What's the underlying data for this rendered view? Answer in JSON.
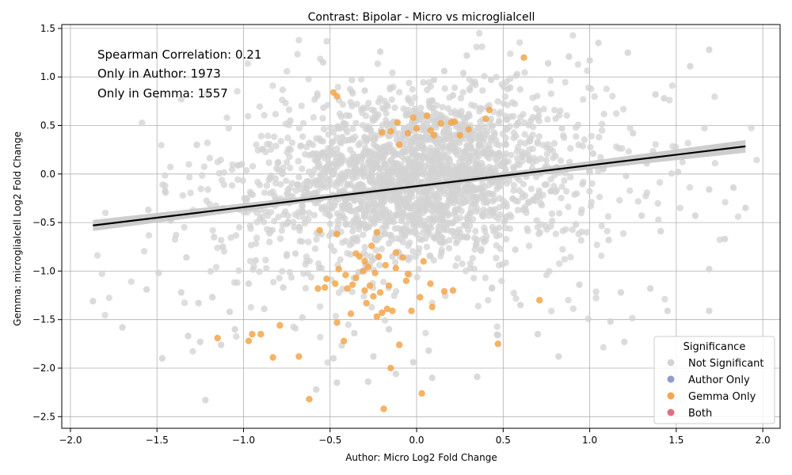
{
  "chart_data": {
    "type": "scatter",
    "title": "Contrast: Bipolar - Micro vs microglialcell",
    "xlabel": "Author: Micro Log2 Fold Change",
    "ylabel": "Gemma: microglialcell Log2 Fold Change",
    "xlim": [
      -2.05,
      2.1
    ],
    "ylim": [
      -2.62,
      1.54
    ],
    "x_ticks": [
      -2.0,
      -1.5,
      -1.0,
      -0.5,
      0.0,
      0.5,
      1.0,
      1.5,
      2.0
    ],
    "y_ticks": [
      -2.5,
      -2.0,
      -1.5,
      -1.0,
      -0.5,
      0.0,
      0.5,
      1.0,
      1.5
    ],
    "grid": true,
    "annotations": [
      "Spearman Correlation: 0.21",
      "Only in Author: 1973",
      "Only in Gemma: 1557"
    ],
    "legend": {
      "title": "Significance",
      "placement": "lower-right",
      "entries": [
        {
          "label": "Not Significant",
          "color": "#d3d3d3"
        },
        {
          "label": "Author Only",
          "color": "#8da0cb"
        },
        {
          "label": "Gemma Only",
          "color": "#f5a54a"
        },
        {
          "label": "Both",
          "color": "#e26d80"
        }
      ]
    },
    "regression": {
      "x": [
        -1.87,
        1.9
      ],
      "y": [
        -0.53,
        0.285
      ],
      "color": "#000000",
      "band_color": "#c8c8c8"
    },
    "series": [
      {
        "name": "Not Significant",
        "color": "#d3d3d3",
        "points": [
          [
            -1.87,
            -1.31
          ],
          [
            -1.7,
            -1.58
          ],
          [
            -1.56,
            -1.19
          ],
          [
            -1.47,
            -1.9
          ],
          [
            -1.49,
            -1.02
          ],
          [
            -1.45,
            -0.19
          ],
          [
            -1.36,
            -1.22
          ],
          [
            -1.33,
            -0.86
          ],
          [
            -1.32,
            -1.67
          ],
          [
            -1.26,
            -1.33
          ],
          [
            -1.25,
            -1.73
          ],
          [
            -1.22,
            -2.33
          ],
          [
            -1.27,
            0.3
          ],
          [
            -1.18,
            -1.27
          ],
          [
            -1.17,
            -0.65
          ],
          [
            -1.13,
            -1.76
          ],
          [
            -1.05,
            -1.6
          ],
          [
            -1.01,
            0.1
          ],
          [
            -0.97,
            -1.13
          ],
          [
            -0.93,
            -0.89
          ],
          [
            -0.88,
            -1.39
          ],
          [
            -0.82,
            -0.23
          ],
          [
            -0.77,
            -1.17
          ],
          [
            -0.73,
            0.55
          ],
          [
            -0.66,
            -1.48
          ],
          [
            -0.58,
            -2.22
          ],
          [
            -0.57,
            0.08
          ],
          [
            -0.54,
            1.15
          ],
          [
            -0.48,
            -1.9
          ],
          [
            -0.46,
            -2.15
          ],
          [
            -0.39,
            0.6
          ],
          [
            -0.3,
            0.86
          ],
          [
            -0.28,
            -2.14
          ],
          [
            -0.25,
            -1.88
          ],
          [
            -0.21,
            1.26
          ],
          [
            -0.16,
            -1.6
          ],
          [
            -0.12,
            -2.06
          ],
          [
            -0.02,
            -1.94
          ],
          [
            0.07,
            -1.82
          ],
          [
            0.09,
            -2.1
          ],
          [
            0.1,
            0.97
          ],
          [
            0.16,
            1.06
          ],
          [
            0.21,
            0.81
          ],
          [
            0.27,
            1.04
          ],
          [
            0.29,
            1.22
          ],
          [
            0.35,
            -2.09
          ],
          [
            0.43,
            0.97
          ],
          [
            0.47,
            -1.66
          ],
          [
            0.54,
            0.89
          ],
          [
            0.6,
            -1.35
          ],
          [
            0.66,
            0.55
          ],
          [
            0.7,
            -1.65
          ],
          [
            0.76,
            1.14
          ],
          [
            0.82,
            -1.88
          ],
          [
            0.88,
            1.21
          ],
          [
            0.94,
            -1.14
          ],
          [
            1.0,
            1.17
          ],
          [
            1.05,
            1.35
          ],
          [
            1.12,
            -1.52
          ],
          [
            1.18,
            -1.22
          ],
          [
            1.2,
            -1.73
          ],
          [
            1.22,
            1.25
          ],
          [
            1.25,
            0.42
          ],
          [
            1.3,
            -0.43
          ],
          [
            1.35,
            -1.18
          ],
          [
            1.38,
            0.82
          ],
          [
            1.43,
            0.78
          ],
          [
            1.45,
            -1.41
          ],
          [
            1.51,
            0.02
          ],
          [
            1.58,
            1.11
          ],
          [
            1.61,
            -0.43
          ],
          [
            1.69,
            1.28
          ],
          [
            1.69,
            -0.98
          ],
          [
            1.69,
            -1.41
          ],
          [
            1.69,
            -0.16
          ],
          [
            1.78,
            -0.67
          ],
          [
            1.83,
            -0.14
          ],
          [
            1.9,
            -0.35
          ],
          [
            -1.55,
            -0.37
          ],
          [
            -1.42,
            -0.48
          ],
          [
            -1.12,
            -0.75
          ],
          [
            -0.98,
            -0.25
          ],
          [
            -0.85,
            -0.61
          ],
          [
            -0.8,
            0.12
          ],
          [
            -0.7,
            -0.82
          ],
          [
            -0.62,
            0.32
          ],
          [
            -0.55,
            -0.97
          ],
          [
            -0.43,
            0.38
          ],
          [
            -0.35,
            -0.46
          ],
          [
            -0.22,
            0.2
          ],
          [
            -0.14,
            -0.85
          ],
          [
            -0.05,
            0.43
          ],
          [
            0.03,
            -0.28
          ],
          [
            0.12,
            0.15
          ],
          [
            0.22,
            -0.64
          ],
          [
            0.31,
            0.29
          ],
          [
            0.38,
            -0.41
          ],
          [
            0.48,
            0.18
          ],
          [
            0.57,
            -0.78
          ],
          [
            0.65,
            0.34
          ],
          [
            0.74,
            -0.11
          ],
          [
            0.84,
            0.47
          ],
          [
            0.92,
            -0.52
          ],
          [
            1.02,
            0.21
          ],
          [
            1.11,
            -0.68
          ],
          [
            1.21,
            -0.02
          ],
          [
            1.33,
            0.11
          ],
          [
            1.41,
            -0.59
          ],
          [
            -1.08,
            -1.42
          ],
          [
            -0.36,
            -1.64
          ]
        ],
        "clusters": [
          {
            "cx": 0.0,
            "cy": -0.02,
            "sx": 0.36,
            "sy": 0.38,
            "n": 1400
          },
          {
            "cx": 0.0,
            "cy": -0.05,
            "sx": 0.6,
            "sy": 0.55,
            "n": 700
          },
          {
            "cx": 0.05,
            "cy": -0.1,
            "sx": 0.9,
            "sy": 0.7,
            "n": 250
          }
        ]
      },
      {
        "name": "Gemma Only",
        "color": "#f5a54a",
        "points": [
          [
            -1.15,
            -1.69
          ],
          [
            -0.97,
            -1.72
          ],
          [
            -0.95,
            -1.65
          ],
          [
            -0.9,
            -1.65
          ],
          [
            -0.83,
            -1.89
          ],
          [
            -0.79,
            -1.56
          ],
          [
            -0.68,
            -1.88
          ],
          [
            -0.62,
            -2.32
          ],
          [
            -0.57,
            -1.18
          ],
          [
            -0.56,
            -0.58
          ],
          [
            -0.52,
            -1.08
          ],
          [
            -0.47,
            -1.13
          ],
          [
            -0.46,
            -1.53
          ],
          [
            -0.46,
            -0.62
          ],
          [
            -0.42,
            -1.72
          ],
          [
            -0.41,
            -1.04
          ],
          [
            -0.4,
            -1.18
          ],
          [
            -0.38,
            -1.44
          ],
          [
            -0.37,
            -1.14
          ],
          [
            -0.35,
            -1.07
          ],
          [
            -0.33,
            -0.85
          ],
          [
            -0.31,
            -1.0
          ],
          [
            -0.3,
            -1.2
          ],
          [
            -0.29,
            -1.33
          ],
          [
            -0.28,
            -0.96
          ],
          [
            -0.27,
            -1.15
          ],
          [
            -0.26,
            -0.74
          ],
          [
            -0.25,
            -1.26
          ],
          [
            -0.24,
            -1.02
          ],
          [
            -0.23,
            -1.47
          ],
          [
            -0.22,
            -0.85
          ],
          [
            -0.21,
            -1.22
          ],
          [
            -0.2,
            -1.43
          ],
          [
            -0.19,
            -2.42
          ],
          [
            -0.18,
            -0.94
          ],
          [
            -0.17,
            -1.39
          ],
          [
            -0.16,
            -1.15
          ],
          [
            -0.15,
            -2.0
          ],
          [
            -0.14,
            -1.41
          ],
          [
            -0.12,
            -0.81
          ],
          [
            -0.1,
            -1.76
          ],
          [
            -0.08,
            -0.86
          ],
          [
            -0.05,
            -1.03
          ],
          [
            -0.03,
            -1.41
          ],
          [
            0.02,
            -1.27
          ],
          [
            0.03,
            -2.26
          ],
          [
            0.08,
            -1.13
          ],
          [
            0.09,
            -1.37
          ],
          [
            0.16,
            -1.21
          ],
          [
            0.21,
            -1.2
          ],
          [
            0.47,
            -1.75
          ],
          [
            0.71,
            -1.3
          ],
          [
            0.62,
            1.2
          ],
          [
            -0.48,
            0.84
          ],
          [
            -0.46,
            0.8
          ],
          [
            0.42,
            0.66
          ],
          [
            0.4,
            0.57
          ],
          [
            0.22,
            0.54
          ],
          [
            0.06,
            0.6
          ],
          [
            -0.02,
            0.58
          ],
          [
            -0.11,
            0.53
          ],
          [
            -0.2,
            0.43
          ],
          [
            0.0,
            0.47
          ],
          [
            0.08,
            0.45
          ],
          [
            0.14,
            0.52
          ],
          [
            0.2,
            0.53
          ],
          [
            -0.1,
            0.3
          ],
          [
            -0.15,
            0.44
          ],
          [
            0.3,
            0.46
          ],
          [
            0.1,
            0.4
          ],
          [
            -0.05,
            0.42
          ],
          [
            0.25,
            0.4
          ],
          [
            -0.3,
            -0.9
          ],
          [
            -0.23,
            -0.6
          ],
          [
            -0.35,
            -0.82
          ],
          [
            -0.12,
            -0.97
          ],
          [
            0.04,
            -0.9
          ],
          [
            -0.06,
            -1.1
          ],
          [
            -0.45,
            -0.98
          ],
          [
            -0.53,
            -1.17
          ]
        ]
      }
    ]
  }
}
